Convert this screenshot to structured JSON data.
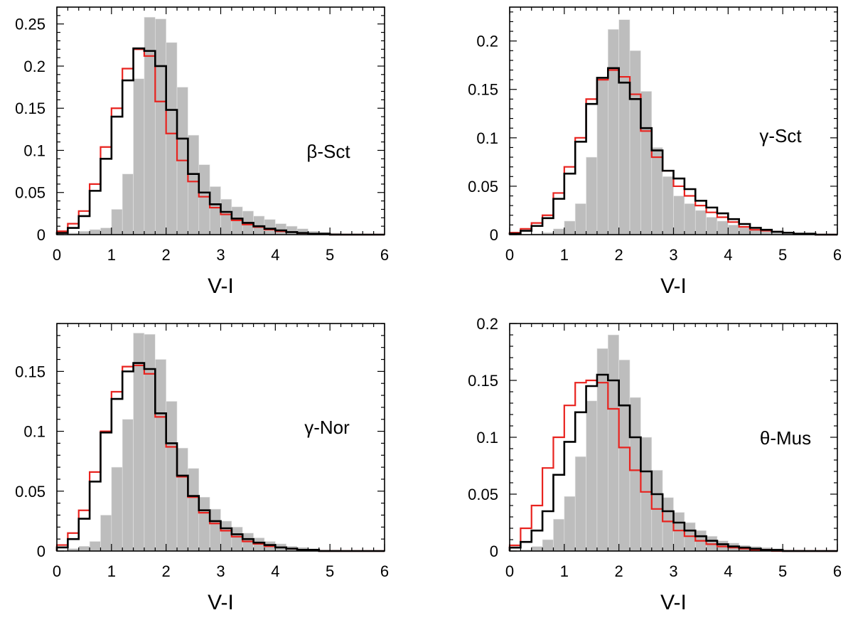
{
  "chart_data": [
    {
      "type": "histogram",
      "panel_label": "β-Sct",
      "xlabel": "V-I",
      "ylabel": "",
      "xlim": [
        0,
        6
      ],
      "ylim": [
        0,
        0.27
      ],
      "xticks": [
        0,
        1,
        2,
        3,
        4,
        5,
        6
      ],
      "yticks": [
        0,
        0.05,
        0.1,
        0.15,
        0.2,
        0.25
      ],
      "ytick_labels": [
        "0",
        "0.05",
        "0.1",
        "0.15",
        "0.2",
        "0.25"
      ],
      "bin_width": 0.2,
      "bin_starts": [
        0,
        0.2,
        0.4,
        0.6,
        0.8,
        1.0,
        1.2,
        1.4,
        1.6,
        1.8,
        2.0,
        2.2,
        2.4,
        2.6,
        2.8,
        3.0,
        3.2,
        3.4,
        3.6,
        3.8,
        4.0,
        4.2,
        4.4,
        4.6,
        4.8,
        5.0,
        5.2,
        5.4,
        5.6,
        5.8
      ],
      "series": [
        {
          "name": "gray-filled",
          "color": "#bdbdbd",
          "values": [
            0.0,
            0.002,
            0.004,
            0.006,
            0.008,
            0.03,
            0.072,
            0.185,
            0.258,
            0.256,
            0.228,
            0.175,
            0.118,
            0.083,
            0.057,
            0.042,
            0.033,
            0.028,
            0.022,
            0.018,
            0.013,
            0.01,
            0.007,
            0.004,
            0.003,
            0.002,
            0.001,
            0.001,
            0.0,
            0.0
          ]
        },
        {
          "name": "red",
          "color": "#e8231f",
          "values": [
            0.004,
            0.013,
            0.028,
            0.06,
            0.104,
            0.15,
            0.197,
            0.22,
            0.212,
            0.158,
            0.12,
            0.088,
            0.063,
            0.045,
            0.032,
            0.024,
            0.017,
            0.012,
            0.009,
            0.006,
            0.004,
            0.003,
            0.002,
            0.001,
            0.001,
            0.0,
            0.0,
            0.0,
            0.0,
            0.0
          ]
        },
        {
          "name": "black",
          "color": "#000000",
          "values": [
            0.002,
            0.008,
            0.022,
            0.052,
            0.09,
            0.14,
            0.183,
            0.221,
            0.218,
            0.2,
            0.148,
            0.114,
            0.072,
            0.05,
            0.036,
            0.027,
            0.019,
            0.014,
            0.01,
            0.007,
            0.005,
            0.003,
            0.002,
            0.001,
            0.001,
            0.0,
            0.0,
            0.0,
            0.0,
            0.0
          ]
        }
      ]
    },
    {
      "type": "histogram",
      "panel_label": "γ-Sct",
      "xlabel": "V-I",
      "ylabel": "",
      "xlim": [
        0,
        6
      ],
      "ylim": [
        0,
        0.235
      ],
      "xticks": [
        0,
        1,
        2,
        3,
        4,
        5,
        6
      ],
      "yticks": [
        0,
        0.05,
        0.1,
        0.15,
        0.2
      ],
      "ytick_labels": [
        "0",
        "0.05",
        "0.1",
        "0.15",
        "0.2"
      ],
      "bin_width": 0.2,
      "bin_starts": [
        0,
        0.2,
        0.4,
        0.6,
        0.8,
        1.0,
        1.2,
        1.4,
        1.6,
        1.8,
        2.0,
        2.2,
        2.4,
        2.6,
        2.8,
        3.0,
        3.2,
        3.4,
        3.6,
        3.8,
        4.0,
        4.2,
        4.4,
        4.6,
        4.8,
        5.0,
        5.2,
        5.4,
        5.6,
        5.8
      ],
      "series": [
        {
          "name": "gray-filled",
          "color": "#bdbdbd",
          "values": [
            0.0,
            0.0,
            0.001,
            0.002,
            0.006,
            0.014,
            0.032,
            0.08,
            0.16,
            0.212,
            0.222,
            0.19,
            0.148,
            0.09,
            0.06,
            0.04,
            0.032,
            0.025,
            0.018,
            0.014,
            0.01,
            0.007,
            0.005,
            0.003,
            0.002,
            0.001,
            0.001,
            0.0,
            0.0,
            0.0
          ]
        },
        {
          "name": "red",
          "color": "#e8231f",
          "values": [
            0.002,
            0.006,
            0.012,
            0.02,
            0.043,
            0.07,
            0.1,
            0.14,
            0.16,
            0.17,
            0.163,
            0.145,
            0.107,
            0.08,
            0.066,
            0.05,
            0.04,
            0.03,
            0.023,
            0.018,
            0.013,
            0.008,
            0.005,
            0.004,
            0.003,
            0.002,
            0.001,
            0.001,
            0.0,
            0.0
          ]
        },
        {
          "name": "black",
          "color": "#000000",
          "values": [
            0.001,
            0.004,
            0.009,
            0.017,
            0.037,
            0.063,
            0.096,
            0.135,
            0.162,
            0.172,
            0.157,
            0.14,
            0.11,
            0.087,
            0.066,
            0.058,
            0.047,
            0.035,
            0.028,
            0.022,
            0.016,
            0.011,
            0.007,
            0.005,
            0.003,
            0.002,
            0.001,
            0.001,
            0.0,
            0.0
          ]
        }
      ]
    },
    {
      "type": "histogram",
      "panel_label": "γ-Nor",
      "xlabel": "V-I",
      "ylabel": "",
      "xlim": [
        0,
        6
      ],
      "ylim": [
        0,
        0.19
      ],
      "xticks": [
        0,
        1,
        2,
        3,
        4,
        5,
        6
      ],
      "yticks": [
        0,
        0.05,
        0.1,
        0.15
      ],
      "ytick_labels": [
        "0",
        "0.05",
        "0.1",
        "0.15"
      ],
      "bin_width": 0.2,
      "bin_starts": [
        0,
        0.2,
        0.4,
        0.6,
        0.8,
        1.0,
        1.2,
        1.4,
        1.6,
        1.8,
        2.0,
        2.2,
        2.4,
        2.6,
        2.8,
        3.0,
        3.2,
        3.4,
        3.6,
        3.8,
        4.0,
        4.2,
        4.4,
        4.6,
        4.8,
        5.0,
        5.2,
        5.4,
        5.6,
        5.8
      ],
      "series": [
        {
          "name": "gray-filled",
          "color": "#bdbdbd",
          "values": [
            0.0,
            0.002,
            0.004,
            0.008,
            0.03,
            0.07,
            0.11,
            0.182,
            0.181,
            0.16,
            0.125,
            0.086,
            0.069,
            0.045,
            0.035,
            0.025,
            0.02,
            0.015,
            0.011,
            0.008,
            0.006,
            0.004,
            0.003,
            0.002,
            0.001,
            0.001,
            0.0,
            0.0,
            0.0,
            0.0
          ]
        },
        {
          "name": "red",
          "color": "#e8231f",
          "values": [
            0.005,
            0.015,
            0.034,
            0.066,
            0.1,
            0.133,
            0.154,
            0.155,
            0.148,
            0.112,
            0.087,
            0.062,
            0.045,
            0.032,
            0.023,
            0.017,
            0.012,
            0.008,
            0.006,
            0.004,
            0.003,
            0.002,
            0.001,
            0.001,
            0.0,
            0.0,
            0.0,
            0.0,
            0.0,
            0.0
          ]
        },
        {
          "name": "black",
          "color": "#000000",
          "values": [
            0.003,
            0.01,
            0.027,
            0.058,
            0.099,
            0.127,
            0.15,
            0.157,
            0.152,
            0.115,
            0.09,
            0.063,
            0.046,
            0.034,
            0.025,
            0.019,
            0.014,
            0.01,
            0.007,
            0.005,
            0.003,
            0.002,
            0.001,
            0.001,
            0.0,
            0.0,
            0.0,
            0.0,
            0.0,
            0.0
          ]
        }
      ]
    },
    {
      "type": "histogram",
      "panel_label": "θ-Mus",
      "xlabel": "V-I",
      "ylabel": "",
      "xlim": [
        0,
        6
      ],
      "ylim": [
        0,
        0.2
      ],
      "xticks": [
        0,
        1,
        2,
        3,
        4,
        5,
        6
      ],
      "yticks": [
        0,
        0.05,
        0.1,
        0.15,
        0.2
      ],
      "ytick_labels": [
        "0",
        "0.05",
        "0.1",
        "0.15",
        "0.2"
      ],
      "bin_width": 0.2,
      "bin_starts": [
        0,
        0.2,
        0.4,
        0.6,
        0.8,
        1.0,
        1.2,
        1.4,
        1.6,
        1.8,
        2.0,
        2.2,
        2.4,
        2.6,
        2.8,
        3.0,
        3.2,
        3.4,
        3.6,
        3.8,
        4.0,
        4.2,
        4.4,
        4.6,
        4.8,
        5.0,
        5.2,
        5.4,
        5.6,
        5.8
      ],
      "series": [
        {
          "name": "gray-filled",
          "color": "#bdbdbd",
          "values": [
            0.0,
            0.001,
            0.004,
            0.01,
            0.028,
            0.048,
            0.083,
            0.132,
            0.178,
            0.19,
            0.168,
            0.135,
            0.1,
            0.071,
            0.047,
            0.034,
            0.025,
            0.018,
            0.013,
            0.009,
            0.007,
            0.005,
            0.004,
            0.003,
            0.002,
            0.001,
            0.001,
            0.0,
            0.0,
            0.0
          ]
        },
        {
          "name": "red",
          "color": "#e8231f",
          "values": [
            0.005,
            0.02,
            0.04,
            0.073,
            0.1,
            0.128,
            0.148,
            0.15,
            0.148,
            0.125,
            0.091,
            0.071,
            0.052,
            0.037,
            0.026,
            0.018,
            0.013,
            0.009,
            0.006,
            0.004,
            0.003,
            0.002,
            0.001,
            0.001,
            0.0,
            0.0,
            0.0,
            0.0,
            0.0,
            0.0
          ]
        },
        {
          "name": "black",
          "color": "#000000",
          "values": [
            0.003,
            0.008,
            0.018,
            0.035,
            0.067,
            0.096,
            0.122,
            0.145,
            0.155,
            0.15,
            0.128,
            0.1,
            0.07,
            0.05,
            0.035,
            0.025,
            0.018,
            0.013,
            0.009,
            0.006,
            0.004,
            0.003,
            0.002,
            0.001,
            0.001,
            0.0,
            0.0,
            0.0,
            0.0,
            0.0
          ]
        }
      ]
    }
  ]
}
